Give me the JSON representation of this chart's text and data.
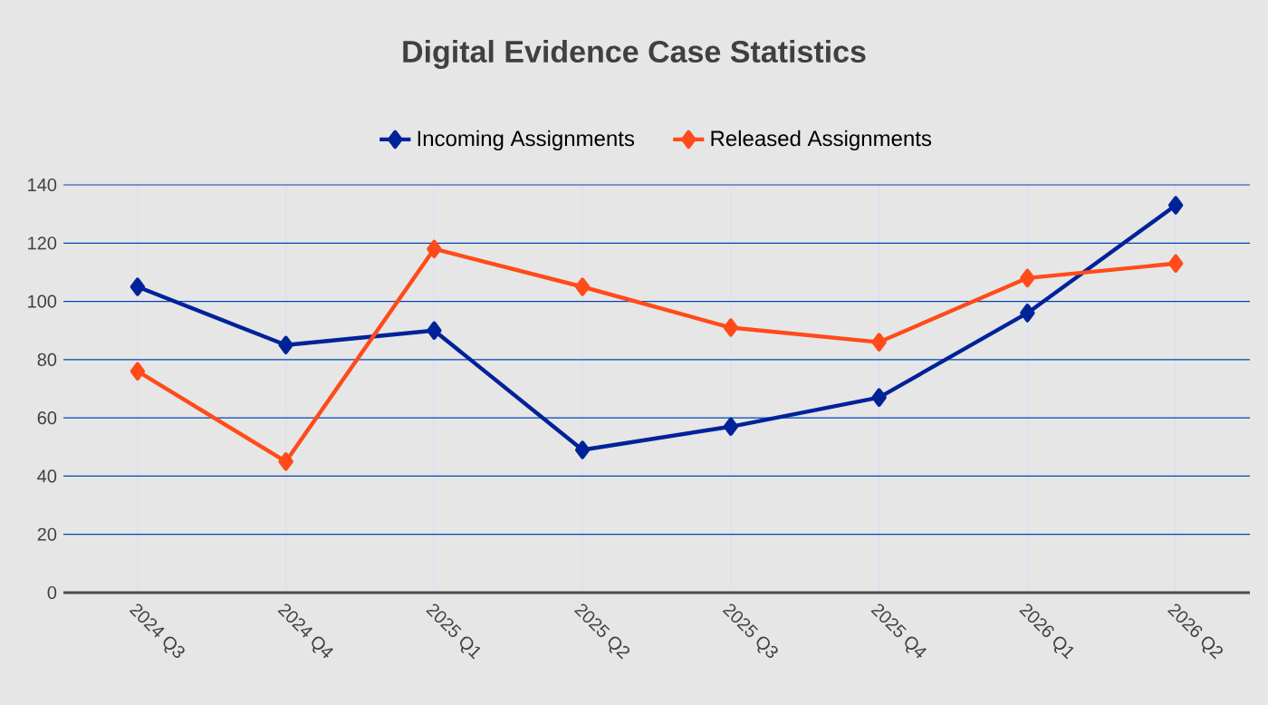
{
  "chart_data": {
    "type": "line",
    "title": "Digital Evidence Case Statistics",
    "categories": [
      "2024 Q3",
      "2024 Q4",
      "2025 Q1",
      "2025 Q2",
      "2025 Q3",
      "2025 Q4",
      "2026 Q1",
      "2026 Q2"
    ],
    "series": [
      {
        "name": "Incoming Assignments",
        "color": "#002299",
        "values": [
          105,
          85,
          90,
          49,
          57,
          67,
          96,
          133
        ]
      },
      {
        "name": "Released Assignments",
        "color": "#ff4b1a",
        "values": [
          76,
          45,
          118,
          105,
          91,
          86,
          108,
          113
        ]
      }
    ],
    "ylim": [
      0,
      140
    ],
    "yticks": [
      0,
      20,
      40,
      60,
      80,
      100,
      120,
      140
    ],
    "grid": true,
    "legend": "top",
    "marker": "diamond",
    "line_style": "solid"
  }
}
